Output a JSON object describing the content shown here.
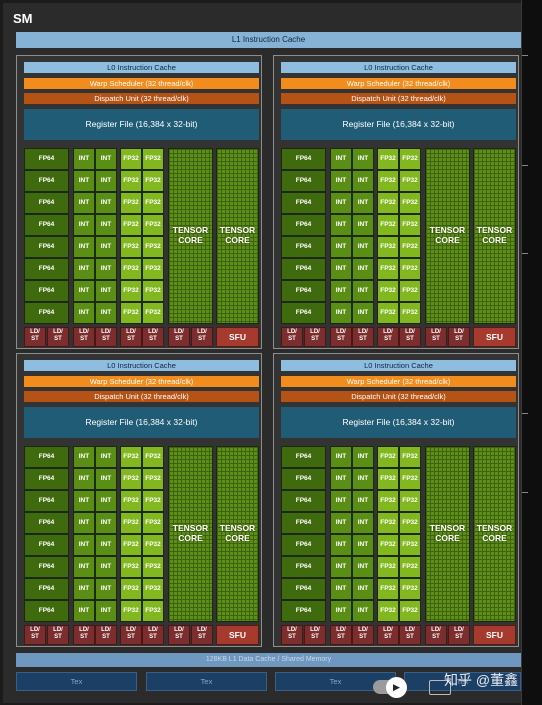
{
  "sm_label": "SM",
  "l1_instruction_cache": "L1 Instruction Cache",
  "l0_instruction_cache": "L0 Instruction Cache",
  "warp_scheduler": "Warp Scheduler (32 thread/clk)",
  "dispatch_unit": "Dispatch Unit (32 thread/clk)",
  "register_file": "Register File (16,384 x 32-bit)",
  "fp64": "FP64",
  "int": "INT",
  "fp32": "FP32",
  "tensor_line1": "TENSOR",
  "tensor_line2": "CORE",
  "ldst_line1": "LD/",
  "ldst_line2": "ST",
  "sfu": "SFU",
  "l1_data_cache": "128KB L1 Data Cache / Shared Memory",
  "tex": "Tex",
  "play_icon": "play-icon",
  "subtitles_icon": "subtitles-icon",
  "watermark": "知乎 @董鑫",
  "colors": {
    "fp64": "#3f6a0d",
    "int": "#5b8e15",
    "fp32": "#82b71f",
    "tensor": "#5e8f17",
    "warp_scheduler": "#f28c1c",
    "dispatch_unit": "#b45315",
    "register_file": "#215c76",
    "cache": "#8fbde0",
    "ldst": "#7c2d2d",
    "sfu": "#a63a2e",
    "tex": "#1c3f66"
  }
}
